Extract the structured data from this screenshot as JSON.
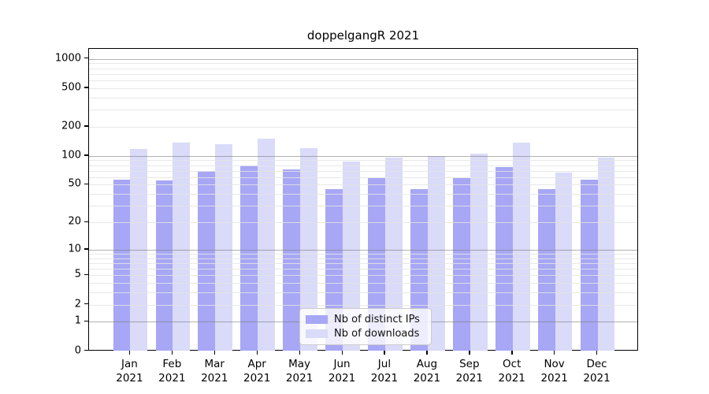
{
  "title": "doppelgangR 2021",
  "legend": {
    "items": [
      {
        "label": "Nb of distinct IPs",
        "color": "#a7a7f5"
      },
      {
        "label": "Nb of downloads",
        "color": "#dadaf9"
      }
    ]
  },
  "chart_data": {
    "type": "bar",
    "title": "doppelgangR 2021",
    "categories": [
      "Jan",
      "Feb",
      "Mar",
      "Apr",
      "May",
      "Jun",
      "Jul",
      "Aug",
      "Sep",
      "Oct",
      "Nov",
      "Dec"
    ],
    "category_year": "2021",
    "series": [
      {
        "name": "Nb of distinct IPs",
        "color": "#a7a7f5",
        "values": [
          57,
          55,
          69,
          79,
          72,
          45,
          59,
          45,
          59,
          76,
          45,
          56
        ]
      },
      {
        "name": "Nb of downloads",
        "color": "#dadaf9",
        "values": [
          119,
          136,
          132,
          150,
          121,
          88,
          95,
          100,
          106,
          138,
          67,
          95
        ]
      }
    ],
    "yscale": "log10(value+1)",
    "ylim": [
      0,
      1250
    ],
    "yticks": [
      0,
      1,
      2,
      5,
      10,
      20,
      50,
      100,
      200,
      500,
      1000
    ],
    "grid": "horizontal major (1,10,100,1000) dark gray + minor (2-9 per decade) light gray, drawn over bars",
    "legend_position": "inside bottom center",
    "axis_color": "#000000",
    "background": "#ffffff"
  }
}
